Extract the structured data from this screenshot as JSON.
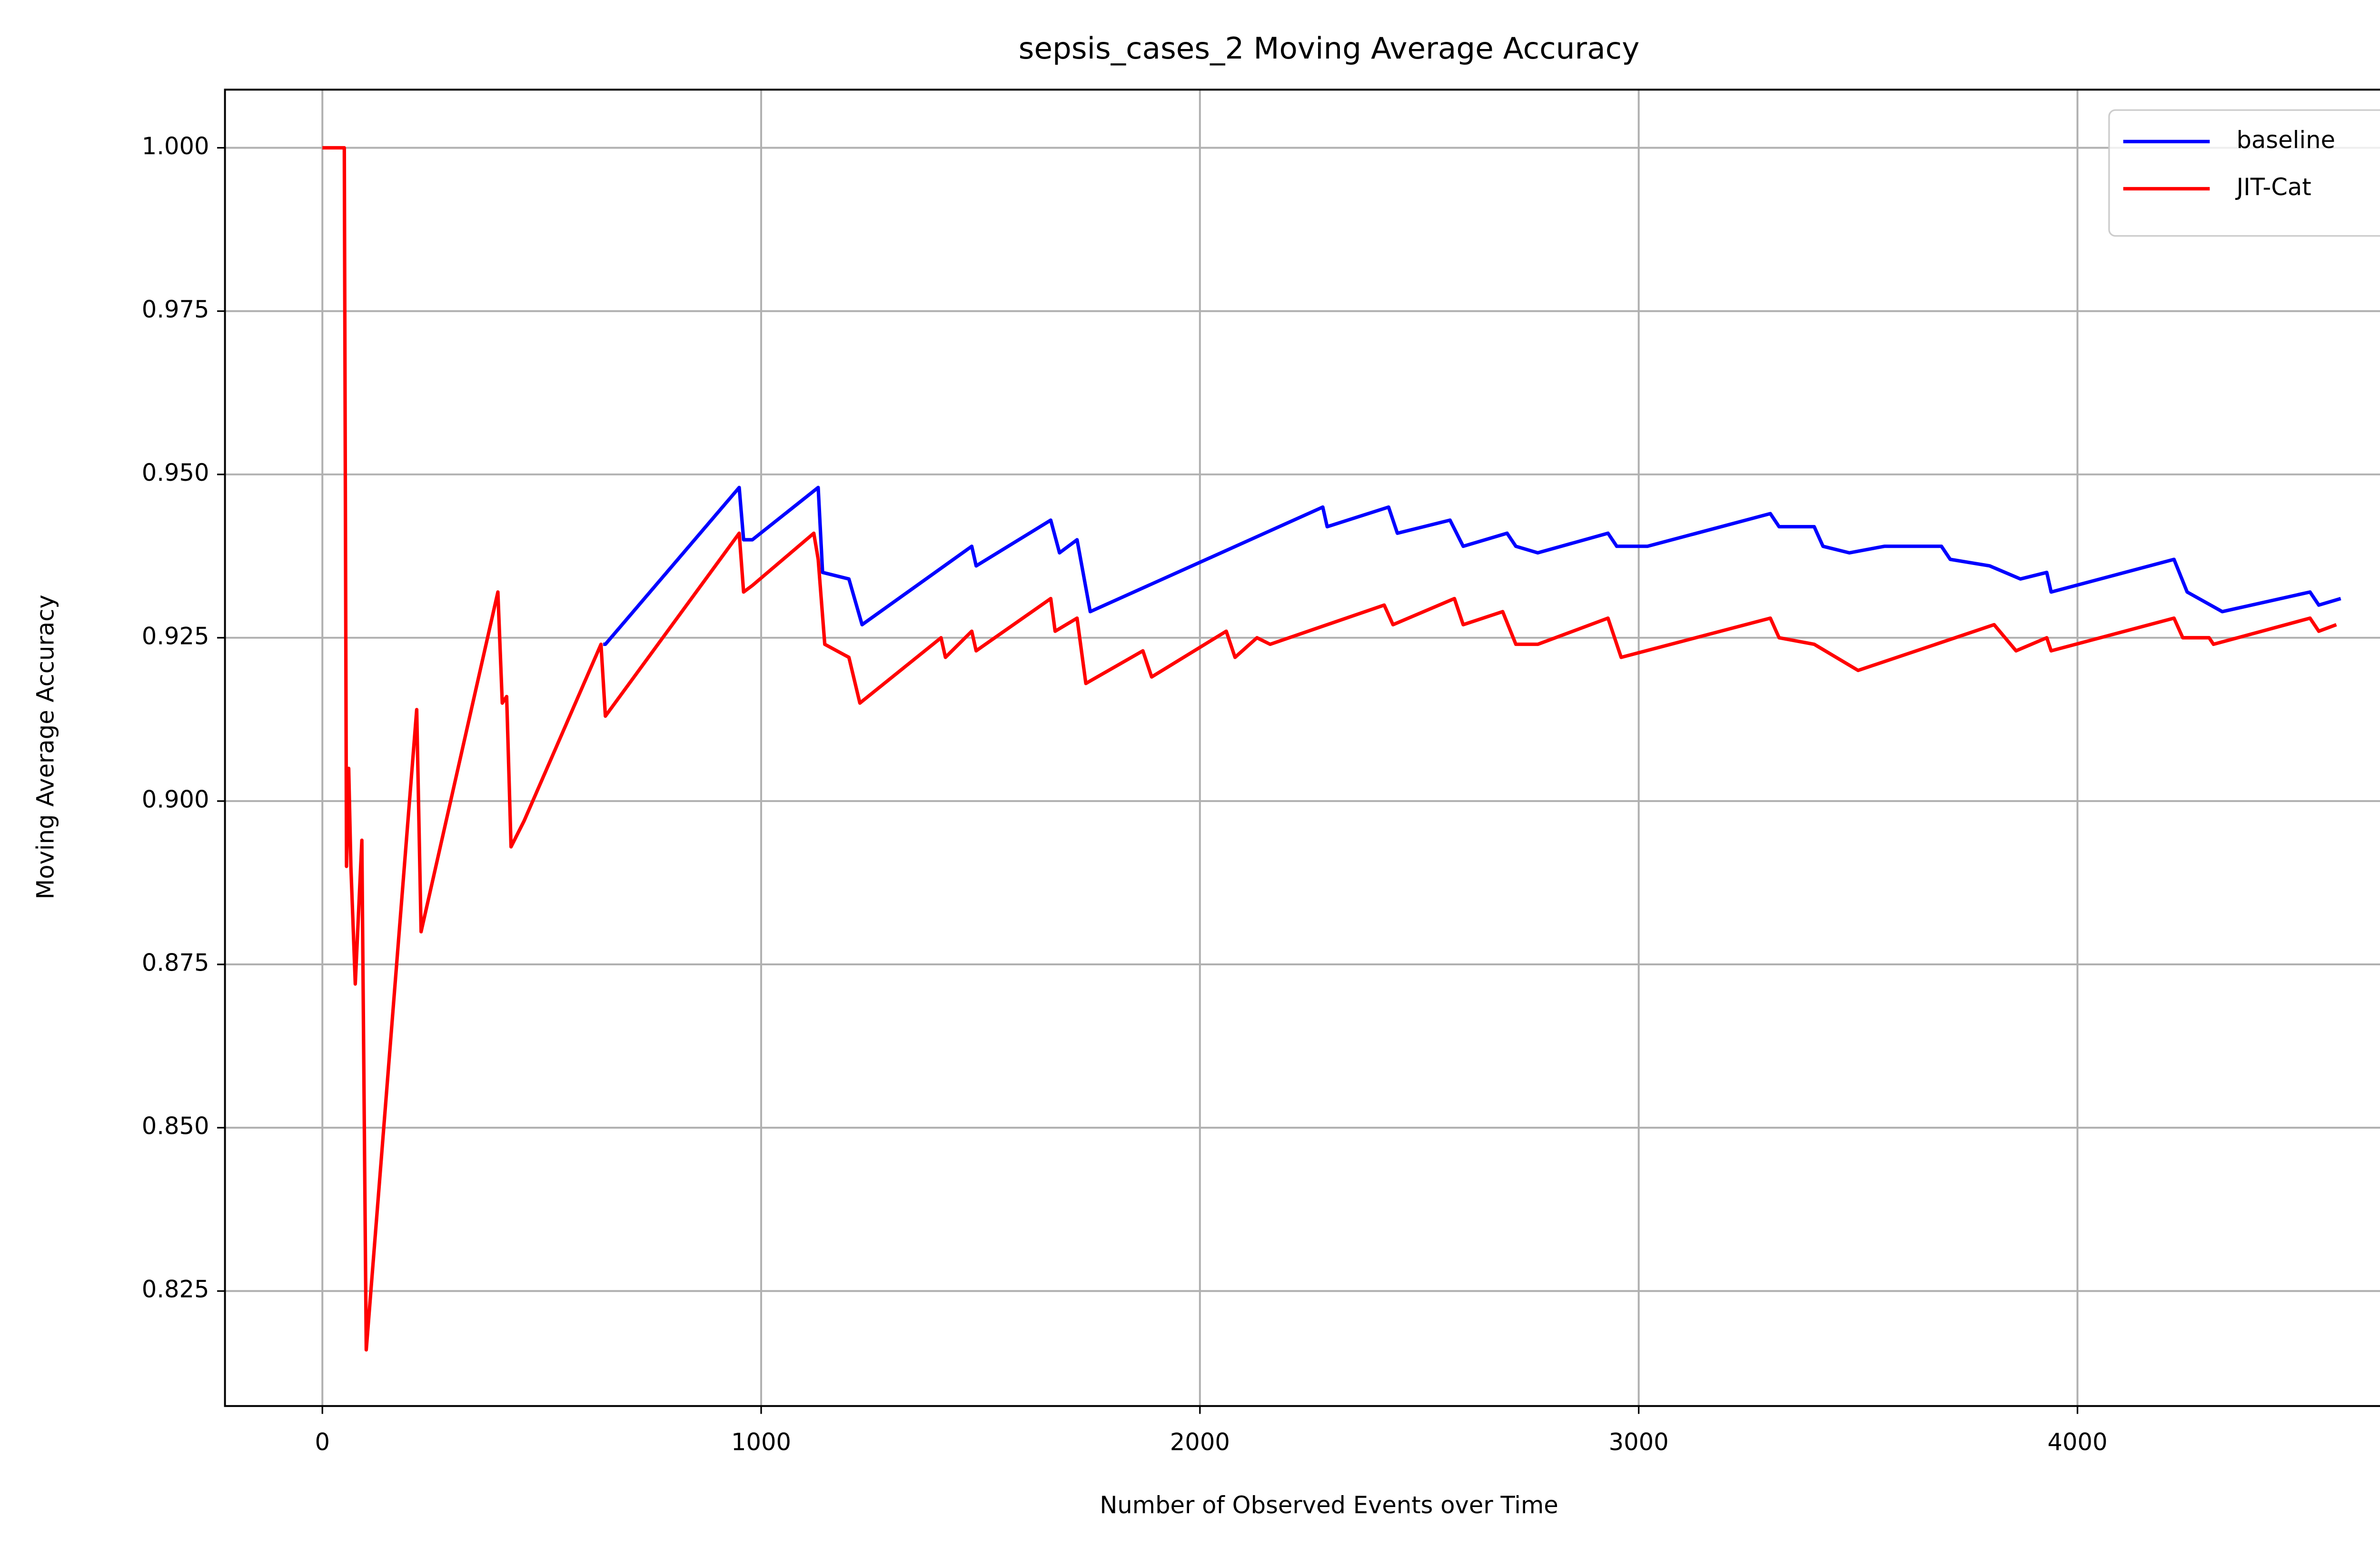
{
  "chart_data": {
    "type": "line",
    "title": "sepsis_cases_2 Moving Average Accuracy",
    "x_label": "Number of Observed Events over Time",
    "y_label": "Moving Average Accuracy",
    "xlim": [
      -222,
      4814
    ],
    "ylim": [
      0.8074,
      1.0089
    ],
    "xticks": [
      0,
      1000,
      2000,
      3000,
      4000
    ],
    "yticks": [
      {
        "value": 0.825,
        "label": "0.825"
      },
      {
        "value": 0.85,
        "label": "0.850"
      },
      {
        "value": 0.875,
        "label": "0.875"
      },
      {
        "value": 0.9,
        "label": "0.900"
      },
      {
        "value": 0.925,
        "label": "0.925"
      },
      {
        "value": 0.95,
        "label": "0.950"
      },
      {
        "value": 0.975,
        "label": "0.975"
      },
      {
        "value": 1.0,
        "label": "1.000"
      }
    ],
    "grid": true,
    "legend": "upper right",
    "series": [
      {
        "name": "baseline",
        "color": "#0000ff",
        "x": [
          640,
          645,
          950,
          960,
          980,
          1130,
          1140,
          1200,
          1230,
          1480,
          1490,
          1660,
          1680,
          1720,
          1750,
          2280,
          2290,
          2430,
          2450,
          2570,
          2600,
          2700,
          2720,
          2770,
          2930,
          2950,
          3020,
          3300,
          3320,
          3400,
          3420,
          3480,
          3560,
          3690,
          3710,
          3800,
          3870,
          3930,
          3940,
          4220,
          4250,
          4330,
          4530,
          4550,
          4600
        ],
        "values": [
          0.924,
          0.924,
          0.948,
          0.94,
          0.94,
          0.948,
          0.935,
          0.934,
          0.927,
          0.939,
          0.936,
          0.943,
          0.938,
          0.94,
          0.929,
          0.945,
          0.942,
          0.945,
          0.941,
          0.943,
          0.939,
          0.941,
          0.939,
          0.938,
          0.941,
          0.939,
          0.939,
          0.944,
          0.942,
          0.942,
          0.939,
          0.938,
          0.939,
          0.939,
          0.937,
          0.936,
          0.934,
          0.935,
          0.932,
          0.937,
          0.932,
          0.929,
          0.932,
          0.93,
          0.931
        ]
      },
      {
        "name": "JIT-Cat",
        "color": "#ff0000",
        "x": [
          0,
          50,
          55,
          60,
          65,
          75,
          90,
          100,
          215,
          225,
          400,
          410,
          420,
          430,
          460,
          635,
          645,
          950,
          960,
          980,
          1120,
          1130,
          1145,
          1200,
          1225,
          1410,
          1420,
          1480,
          1490,
          1660,
          1670,
          1720,
          1740,
          1870,
          1890,
          2060,
          2080,
          2130,
          2160,
          2420,
          2440,
          2580,
          2600,
          2690,
          2720,
          2770,
          2930,
          2960,
          3300,
          3320,
          3400,
          3500,
          3810,
          3860,
          3930,
          3940,
          4220,
          4240,
          4300,
          4310,
          4530,
          4550,
          4590
        ],
        "values": [
          1.0,
          1.0,
          0.89,
          0.905,
          0.89,
          0.872,
          0.894,
          0.816,
          0.914,
          0.88,
          0.932,
          0.915,
          0.916,
          0.893,
          0.897,
          0.924,
          0.913,
          0.941,
          0.932,
          0.933,
          0.941,
          0.937,
          0.924,
          0.922,
          0.915,
          0.925,
          0.922,
          0.926,
          0.923,
          0.931,
          0.926,
          0.928,
          0.918,
          0.923,
          0.919,
          0.926,
          0.922,
          0.925,
          0.924,
          0.93,
          0.927,
          0.931,
          0.927,
          0.929,
          0.924,
          0.924,
          0.928,
          0.922,
          0.928,
          0.925,
          0.924,
          0.92,
          0.927,
          0.923,
          0.925,
          0.923,
          0.928,
          0.925,
          0.925,
          0.924,
          0.928,
          0.926,
          0.927
        ]
      }
    ]
  }
}
